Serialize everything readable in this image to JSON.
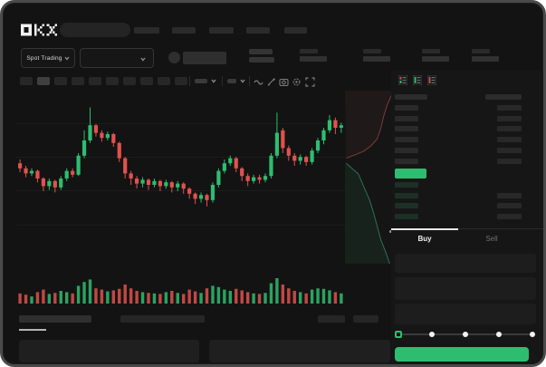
{
  "header": {
    "logo_text": "OKX",
    "nav_item_count": 5,
    "search_placeholder": ""
  },
  "ticker": {
    "market_selector_label": "Spot Trading",
    "stat_group_count": 4
  },
  "toolbar": {
    "timeframe_count": 10,
    "active_timeframe_index": 1,
    "icons": [
      "wave-icon",
      "pencil-icon",
      "camera-icon",
      "settings-icon",
      "fullscreen-icon"
    ]
  },
  "order_book": {
    "layout_icons": [
      "orderbook-combined-icon",
      "orderbook-bids-icon",
      "orderbook-asks-icon"
    ],
    "ask_row_count": 6,
    "bid_row_count": 4,
    "bid_rows_with_amount": [
      1,
      2,
      3
    ]
  },
  "trade_panel": {
    "buy_tab_label": "Buy",
    "sell_tab_label": "Sell",
    "active_tab": "Buy",
    "slider_stop_count": 5,
    "active_slider_stop": 0,
    "buy_button_color": "#2ebd70"
  },
  "colors": {
    "up_green": "#2ebd70",
    "down_red": "#e0524e",
    "bid_row_fill": "#1d3026",
    "ask_row_fill": "#2a2a2a",
    "panel_bg": "#161616"
  },
  "chart_data": {
    "type": "candlestick",
    "title": "",
    "xlabel": "",
    "ylabel": "",
    "value_range": [
      0,
      100
    ],
    "grid": true,
    "candles_ohlc": [
      [
        52,
        55,
        45,
        48
      ],
      [
        48,
        50,
        41,
        44
      ],
      [
        44,
        48,
        42,
        46
      ],
      [
        46,
        47,
        37,
        40
      ],
      [
        40,
        41,
        30,
        34
      ],
      [
        34,
        40,
        31,
        38
      ],
      [
        38,
        39,
        29,
        33
      ],
      [
        33,
        42,
        31,
        40
      ],
      [
        40,
        48,
        38,
        46
      ],
      [
        46,
        48,
        41,
        43
      ],
      [
        43,
        60,
        42,
        58
      ],
      [
        58,
        78,
        56,
        70
      ],
      [
        70,
        96,
        68,
        82
      ],
      [
        82,
        83,
        73,
        76
      ],
      [
        76,
        78,
        69,
        72
      ],
      [
        72,
        77,
        70,
        75
      ],
      [
        75,
        76,
        65,
        68
      ],
      [
        68,
        69,
        53,
        56
      ],
      [
        56,
        57,
        40,
        44
      ],
      [
        44,
        46,
        35,
        40
      ],
      [
        40,
        42,
        32,
        36
      ],
      [
        36,
        41,
        33,
        39
      ],
      [
        39,
        40,
        31,
        35
      ],
      [
        35,
        40,
        33,
        38
      ],
      [
        38,
        39,
        30,
        34
      ],
      [
        34,
        39,
        32,
        37
      ],
      [
        37,
        38,
        29,
        33
      ],
      [
        33,
        38,
        30,
        36
      ],
      [
        36,
        37,
        28,
        32
      ],
      [
        32,
        33,
        24,
        28
      ],
      [
        28,
        29,
        20,
        24
      ],
      [
        24,
        29,
        21,
        27
      ],
      [
        27,
        28,
        18,
        23
      ],
      [
        23,
        37,
        21,
        35
      ],
      [
        35,
        48,
        33,
        46
      ],
      [
        46,
        55,
        44,
        52
      ],
      [
        52,
        58,
        50,
        56
      ],
      [
        56,
        57,
        45,
        48
      ],
      [
        48,
        49,
        38,
        42
      ],
      [
        42,
        44,
        34,
        38
      ],
      [
        38,
        43,
        36,
        41
      ],
      [
        41,
        43,
        36,
        39
      ],
      [
        39,
        44,
        37,
        42
      ],
      [
        42,
        60,
        40,
        58
      ],
      [
        58,
        92,
        56,
        76
      ],
      [
        78,
        80,
        60,
        64
      ],
      [
        64,
        66,
        54,
        58
      ],
      [
        58,
        60,
        50,
        54
      ],
      [
        54,
        59,
        51,
        57
      ],
      [
        57,
        58,
        50,
        53
      ],
      [
        53,
        64,
        51,
        62
      ],
      [
        62,
        72,
        60,
        70
      ],
      [
        70,
        80,
        67,
        78
      ],
      [
        78,
        90,
        76,
        86
      ],
      [
        86,
        88,
        75,
        80
      ],
      [
        80,
        84,
        76,
        82
      ]
    ],
    "volume": [
      40,
      35,
      28,
      45,
      55,
      38,
      42,
      50,
      45,
      40,
      70,
      85,
      95,
      60,
      55,
      48,
      52,
      58,
      75,
      60,
      50,
      45,
      42,
      40,
      38,
      45,
      50,
      42,
      38,
      55,
      48,
      42,
      60,
      70,
      65,
      55,
      50,
      58,
      52,
      45,
      40,
      38,
      42,
      80,
      100,
      75,
      60,
      50,
      45,
      40,
      55,
      60,
      58,
      52,
      45,
      40
    ],
    "depth": {
      "asks_line": [
        [
          1.0,
          0.02
        ],
        [
          0.9,
          0.08
        ],
        [
          0.82,
          0.15
        ],
        [
          0.76,
          0.22
        ],
        [
          0.68,
          0.28
        ],
        [
          0.55,
          0.32
        ],
        [
          0.4,
          0.35
        ],
        [
          0.22,
          0.37
        ],
        [
          0.03,
          0.39
        ]
      ],
      "bids_line": [
        [
          0.03,
          0.42
        ],
        [
          0.15,
          0.45
        ],
        [
          0.28,
          0.48
        ],
        [
          0.36,
          0.53
        ],
        [
          0.44,
          0.58
        ],
        [
          0.52,
          0.63
        ],
        [
          0.6,
          0.7
        ],
        [
          0.68,
          0.78
        ],
        [
          0.76,
          0.86
        ],
        [
          0.86,
          0.93
        ],
        [
          0.95,
          1.0
        ]
      ]
    }
  }
}
